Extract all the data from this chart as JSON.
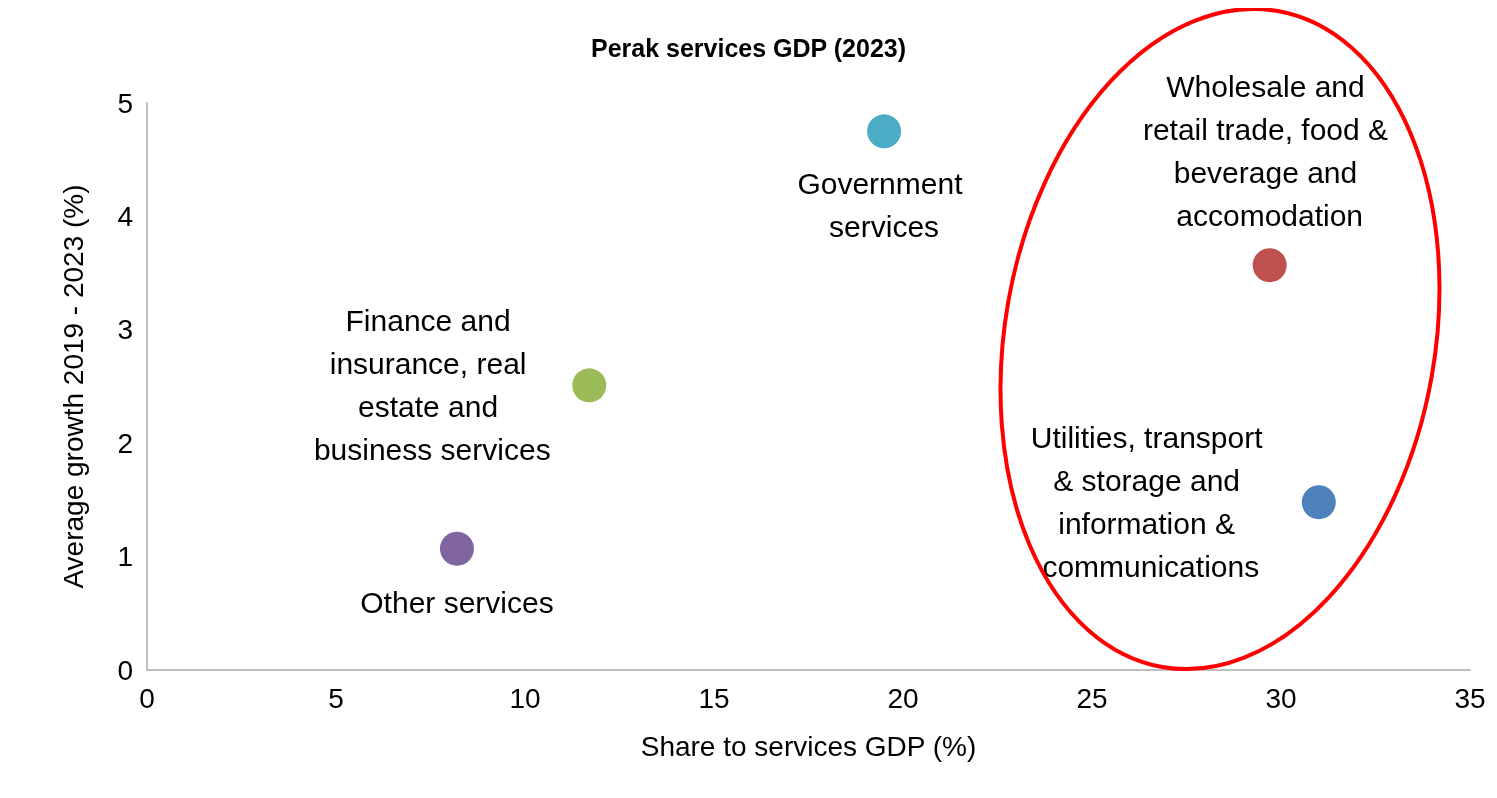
{
  "chart_data": {
    "type": "scatter",
    "title": "Perak services GDP (2023)",
    "xlabel": "Share to services GDP (%)",
    "ylabel": "Average growth 2019 - 2023 (%)",
    "xlim": [
      0,
      35
    ],
    "xticks": [
      0,
      5,
      10,
      15,
      20,
      25,
      30,
      35
    ],
    "ylim": [
      0,
      5
    ],
    "yticks": [
      0,
      1,
      2,
      3,
      4,
      5
    ],
    "grid": false,
    "legend": false,
    "marker": "circle",
    "series": [
      {
        "name": "Government services",
        "color": "#4bacc6",
        "x": [
          19.5
        ],
        "values": [
          4.75
        ]
      },
      {
        "name": "Wholesale and retail trade, food & beverage and accomodation",
        "color": "#c0504d",
        "x": [
          29.7
        ],
        "values": [
          3.57
        ]
      },
      {
        "name": "Finance and insurance, real estate and business services",
        "color": "#9bbb59",
        "x": [
          11.7
        ],
        "values": [
          2.51
        ]
      },
      {
        "name": "Utilities, transport & storage and information & communications",
        "color": "#4f81bd",
        "x": [
          31.0
        ],
        "values": [
          1.48
        ]
      },
      {
        "name": "Other services",
        "color": "#8064a2",
        "x": [
          8.2
        ],
        "values": [
          1.07
        ]
      }
    ]
  }
}
